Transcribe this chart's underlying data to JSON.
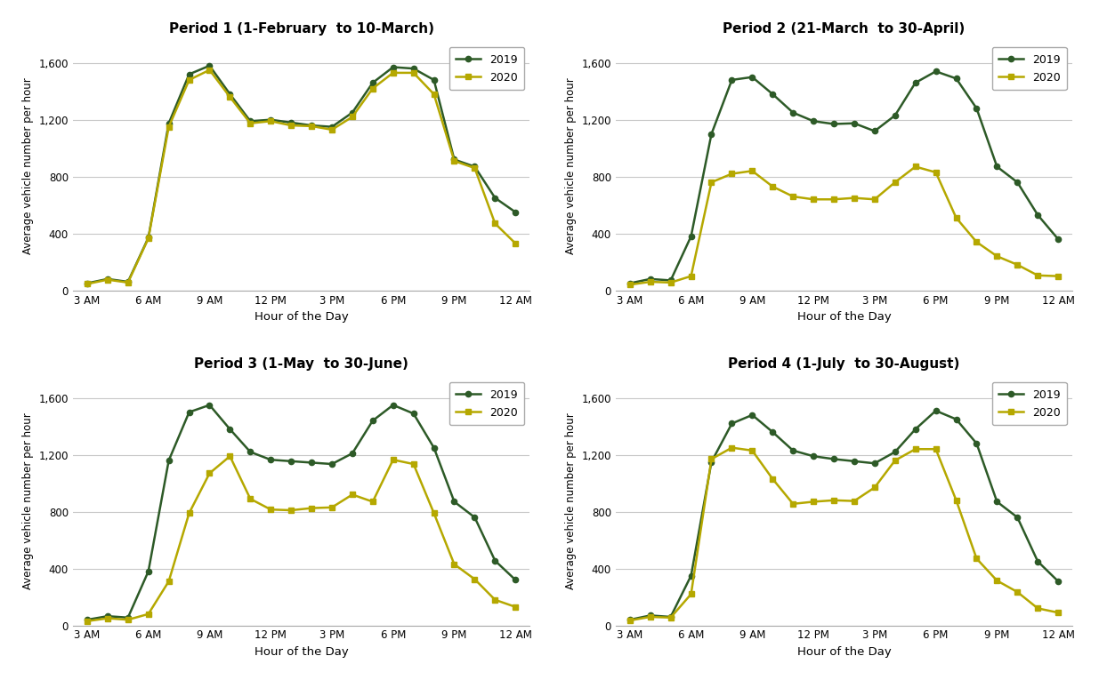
{
  "hour_labels": [
    "3 AM",
    "6 AM",
    "9 AM",
    "12 PM",
    "3 PM",
    "6 PM",
    "9 PM",
    "12 AM"
  ],
  "color_2019": "#2d5a27",
  "color_2020": "#b5a800",
  "periods": [
    {
      "title": "Period 1 (1-February  to 10-March)",
      "data_2019": [
        50,
        80,
        60,
        370,
        1175,
        1520,
        1580,
        1380,
        1190,
        1200,
        1180,
        1160,
        1150,
        1250,
        1460,
        1570,
        1560,
        1480,
        920,
        870,
        650,
        550
      ],
      "data_2020": [
        45,
        75,
        55,
        365,
        1150,
        1480,
        1550,
        1360,
        1175,
        1190,
        1160,
        1155,
        1130,
        1220,
        1420,
        1530,
        1530,
        1380,
        910,
        860,
        470,
        330
      ]
    },
    {
      "title": "Period 2 (21-March  to 30-April)",
      "data_2019": [
        50,
        80,
        70,
        380,
        1100,
        1480,
        1500,
        1380,
        1250,
        1190,
        1170,
        1175,
        1120,
        1230,
        1460,
        1540,
        1490,
        1280,
        870,
        760,
        530,
        360
      ],
      "data_2020": [
        40,
        60,
        55,
        100,
        760,
        820,
        840,
        730,
        660,
        640,
        640,
        650,
        640,
        760,
        870,
        830,
        510,
        340,
        240,
        180,
        105,
        100
      ]
    },
    {
      "title": "Period 3 (1-May  to 30-June)",
      "data_2019": [
        40,
        65,
        55,
        380,
        1160,
        1500,
        1550,
        1380,
        1220,
        1165,
        1155,
        1145,
        1135,
        1210,
        1440,
        1550,
        1490,
        1250,
        870,
        760,
        455,
        320
      ],
      "data_2020": [
        30,
        50,
        40,
        80,
        310,
        790,
        1070,
        1190,
        890,
        815,
        810,
        825,
        830,
        920,
        870,
        1165,
        1135,
        790,
        430,
        325,
        180,
        130
      ]
    },
    {
      "title": "Period 4 (1-July  to 30-August)",
      "data_2019": [
        40,
        70,
        60,
        350,
        1150,
        1420,
        1480,
        1360,
        1230,
        1190,
        1170,
        1155,
        1140,
        1220,
        1380,
        1510,
        1450,
        1280,
        870,
        760,
        450,
        310
      ],
      "data_2020": [
        35,
        60,
        55,
        220,
        1170,
        1250,
        1230,
        1030,
        855,
        870,
        880,
        875,
        970,
        1160,
        1240,
        1240,
        880,
        470,
        315,
        235,
        120,
        90
      ]
    }
  ],
  "ylabel": "Average vehicle number per hour",
  "xlabel": "Hour of the Day",
  "ylim": [
    0,
    1750
  ],
  "yticks": [
    0,
    400,
    800,
    1200,
    1600
  ],
  "ytick_labels": [
    "0",
    "400",
    "800",
    "1,200",
    "1,600"
  ],
  "background_color": "#ffffff",
  "grid_color": "#c8c8c8"
}
